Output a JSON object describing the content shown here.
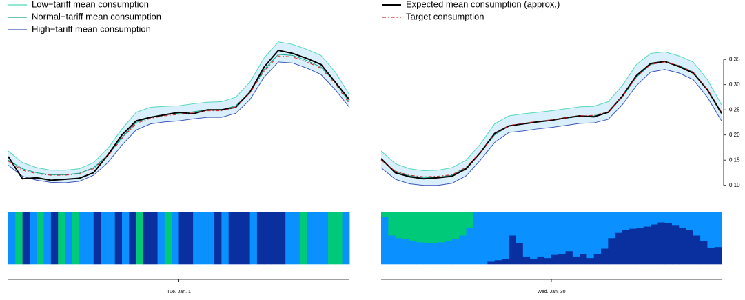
{
  "chart_data": [
    {
      "type": "line",
      "date": "Tue. Jan. 1",
      "ylim": [
        0.09,
        0.39
      ],
      "band_color": "#d9effb",
      "series": [
        {
          "name": "Low−tariff mean consumption",
          "color": "#52d8b6",
          "style": "solid",
          "values": [
            0.168,
            0.145,
            0.135,
            0.13,
            0.13,
            0.133,
            0.145,
            0.173,
            0.212,
            0.245,
            0.255,
            0.257,
            0.258,
            0.262,
            0.265,
            0.266,
            0.275,
            0.305,
            0.353,
            0.385,
            0.38,
            0.37,
            0.358,
            0.325,
            0.28
          ]
        },
        {
          "name": "Normal−tariff mean consumption",
          "color": "#14a58d",
          "style": "solid",
          "values": [
            0.15,
            0.133,
            0.125,
            0.121,
            0.121,
            0.124,
            0.135,
            0.16,
            0.195,
            0.225,
            0.235,
            0.24,
            0.243,
            0.246,
            0.25,
            0.25,
            0.258,
            0.285,
            0.33,
            0.36,
            0.358,
            0.348,
            0.335,
            0.305,
            0.265
          ]
        },
        {
          "name": "High−tariff mean consumption",
          "color": "#3d55b8",
          "style": "solid",
          "values": [
            0.14,
            0.118,
            0.11,
            0.106,
            0.105,
            0.108,
            0.12,
            0.145,
            0.18,
            0.21,
            0.222,
            0.226,
            0.228,
            0.232,
            0.235,
            0.235,
            0.243,
            0.27,
            0.315,
            0.345,
            0.343,
            0.333,
            0.32,
            0.29,
            0.255
          ]
        },
        {
          "name": "Expected mean consumption (approx.)",
          "color": "#000000",
          "style": "solid",
          "width": 2,
          "values": [
            0.157,
            0.113,
            0.115,
            0.11,
            0.112,
            0.114,
            0.125,
            0.16,
            0.2,
            0.228,
            0.235,
            0.24,
            0.245,
            0.242,
            0.25,
            0.25,
            0.255,
            0.285,
            0.335,
            0.368,
            0.362,
            0.352,
            0.34,
            0.305,
            0.27
          ]
        },
        {
          "name": "Target consumption",
          "color": "#d42020",
          "style": "dashdot",
          "values": [
            0.148,
            0.13,
            0.123,
            0.12,
            0.12,
            0.123,
            0.133,
            0.158,
            0.193,
            0.223,
            0.233,
            0.238,
            0.241,
            0.244,
            0.248,
            0.248,
            0.256,
            0.283,
            0.327,
            0.357,
            0.355,
            0.345,
            0.333,
            0.302,
            0.262
          ]
        }
      ]
    },
    {
      "type": "line",
      "date": "Wed. Jan. 30",
      "ylim": [
        0.09,
        0.39
      ],
      "band_color": "#d9effb",
      "yticks": [
        {
          "value": 0.1,
          "label": "0.10"
        },
        {
          "value": 0.15,
          "label": "0.15"
        },
        {
          "value": 0.2,
          "label": "0.20"
        },
        {
          "value": 0.25,
          "label": "0.25"
        },
        {
          "value": 0.3,
          "label": "0.30"
        },
        {
          "value": 0.35,
          "label": "0.35"
        }
      ],
      "series": [
        {
          "color": "#52d8b6",
          "style": "solid",
          "values": [
            0.168,
            0.143,
            0.133,
            0.129,
            0.13,
            0.135,
            0.15,
            0.182,
            0.222,
            0.238,
            0.242,
            0.245,
            0.248,
            0.252,
            0.256,
            0.257,
            0.266,
            0.298,
            0.34,
            0.362,
            0.365,
            0.357,
            0.345,
            0.31,
            0.26
          ]
        },
        {
          "color": "#14a58d",
          "style": "solid",
          "values": [
            0.15,
            0.128,
            0.119,
            0.115,
            0.116,
            0.12,
            0.135,
            0.165,
            0.2,
            0.218,
            0.222,
            0.226,
            0.229,
            0.233,
            0.237,
            0.238,
            0.245,
            0.275,
            0.315,
            0.34,
            0.345,
            0.338,
            0.325,
            0.29,
            0.245
          ]
        },
        {
          "color": "#3d55b8",
          "style": "solid",
          "values": [
            0.135,
            0.112,
            0.103,
            0.1,
            0.1,
            0.104,
            0.119,
            0.15,
            0.185,
            0.205,
            0.208,
            0.212,
            0.215,
            0.219,
            0.223,
            0.224,
            0.231,
            0.26,
            0.298,
            0.325,
            0.33,
            0.323,
            0.31,
            0.275,
            0.228
          ]
        },
        {
          "color": "#000000",
          "style": "solid",
          "width": 2,
          "values": [
            0.153,
            0.125,
            0.117,
            0.113,
            0.115,
            0.118,
            0.133,
            0.165,
            0.203,
            0.218,
            0.222,
            0.226,
            0.229,
            0.234,
            0.238,
            0.236,
            0.245,
            0.277,
            0.318,
            0.342,
            0.346,
            0.336,
            0.323,
            0.29,
            0.243
          ]
        },
        {
          "color": "#d42020",
          "style": "dashdot",
          "values": [
            0.15,
            0.128,
            0.12,
            0.117,
            0.118,
            0.121,
            0.136,
            0.166,
            0.201,
            0.219,
            0.223,
            0.227,
            0.23,
            0.234,
            0.238,
            0.239,
            0.246,
            0.276,
            0.316,
            0.34,
            0.345,
            0.338,
            0.325,
            0.291,
            0.246
          ]
        }
      ]
    },
    {
      "type": "stacked_bar",
      "series": [
        {
          "color": "#0a2f9e",
          "values": [
            0,
            0,
            1,
            0,
            0,
            0,
            1,
            0,
            0,
            0,
            0,
            0,
            1,
            0,
            0,
            1,
            0,
            1,
            0,
            1,
            1,
            0,
            0,
            0,
            1,
            1,
            0,
            0,
            0,
            1,
            0,
            1,
            1,
            1,
            0,
            1,
            1,
            1,
            1,
            0,
            0,
            0,
            0,
            0,
            0,
            0,
            0,
            0
          ]
        },
        {
          "color": "#0a90ff",
          "values": [
            1,
            0,
            0,
            1,
            0,
            1,
            0,
            0,
            1,
            0,
            1,
            1,
            0,
            1,
            1,
            0,
            1,
            0,
            0,
            0,
            0,
            1,
            0,
            1,
            0,
            0,
            1,
            1,
            1,
            0,
            1,
            0,
            0,
            0,
            1,
            0,
            0,
            0,
            0,
            1,
            1,
            0,
            1,
            1,
            1,
            0,
            0,
            1
          ]
        },
        {
          "color": "#00c97a",
          "values": [
            0,
            1,
            0,
            0,
            1,
            0,
            0,
            1,
            0,
            1,
            0,
            0,
            0,
            0,
            0,
            0,
            0,
            0,
            1,
            0,
            0,
            0,
            1,
            0,
            0,
            0,
            0,
            0,
            0,
            0,
            0,
            0,
            0,
            0,
            0,
            0,
            0,
            0,
            0,
            0,
            0,
            1,
            0,
            0,
            0,
            1,
            1,
            0
          ]
        }
      ]
    },
    {
      "type": "stacked_bar",
      "series": [
        {
          "color": "#0a2f9e",
          "values": [
            0,
            0,
            0,
            0,
            0,
            0,
            0,
            0,
            0,
            0,
            0,
            0,
            0,
            0,
            0,
            0.05,
            0.08,
            0.1,
            0.55,
            0.4,
            0.15,
            0.1,
            0.15,
            0.12,
            0.18,
            0.2,
            0.25,
            0.15,
            0.2,
            0.12,
            0.2,
            0.3,
            0.5,
            0.6,
            0.65,
            0.68,
            0.7,
            0.72,
            0.76,
            0.8,
            0.78,
            0.75,
            0.7,
            0.65,
            0.55,
            0.45,
            0.32,
            0.33
          ]
        },
        {
          "color": "#0a90ff",
          "values": [
            0.9,
            0.55,
            0.5,
            0.48,
            0.45,
            0.42,
            0.4,
            0.4,
            0.42,
            0.45,
            0.48,
            0.55,
            0.7,
            1,
            1,
            0.95,
            0.92,
            0.9,
            0.45,
            0.6,
            0.85,
            0.9,
            0.85,
            0.88,
            0.82,
            0.8,
            0.75,
            0.85,
            0.8,
            0.88,
            0.8,
            0.7,
            0.5,
            0.4,
            0.35,
            0.32,
            0.3,
            0.28,
            0.24,
            0.2,
            0.22,
            0.25,
            0.3,
            0.35,
            0.45,
            0.55,
            0.68,
            0.67
          ]
        },
        {
          "color": "#00c97a",
          "values": [
            0.1,
            0.45,
            0.5,
            0.52,
            0.55,
            0.58,
            0.6,
            0.6,
            0.58,
            0.55,
            0.52,
            0.45,
            0.3,
            0,
            0,
            0,
            0,
            0,
            0,
            0,
            0,
            0,
            0,
            0,
            0,
            0,
            0,
            0,
            0,
            0,
            0,
            0,
            0,
            0,
            0,
            0,
            0,
            0,
            0,
            0,
            0,
            0,
            0,
            0,
            0,
            0,
            0,
            0
          ]
        }
      ]
    }
  ]
}
